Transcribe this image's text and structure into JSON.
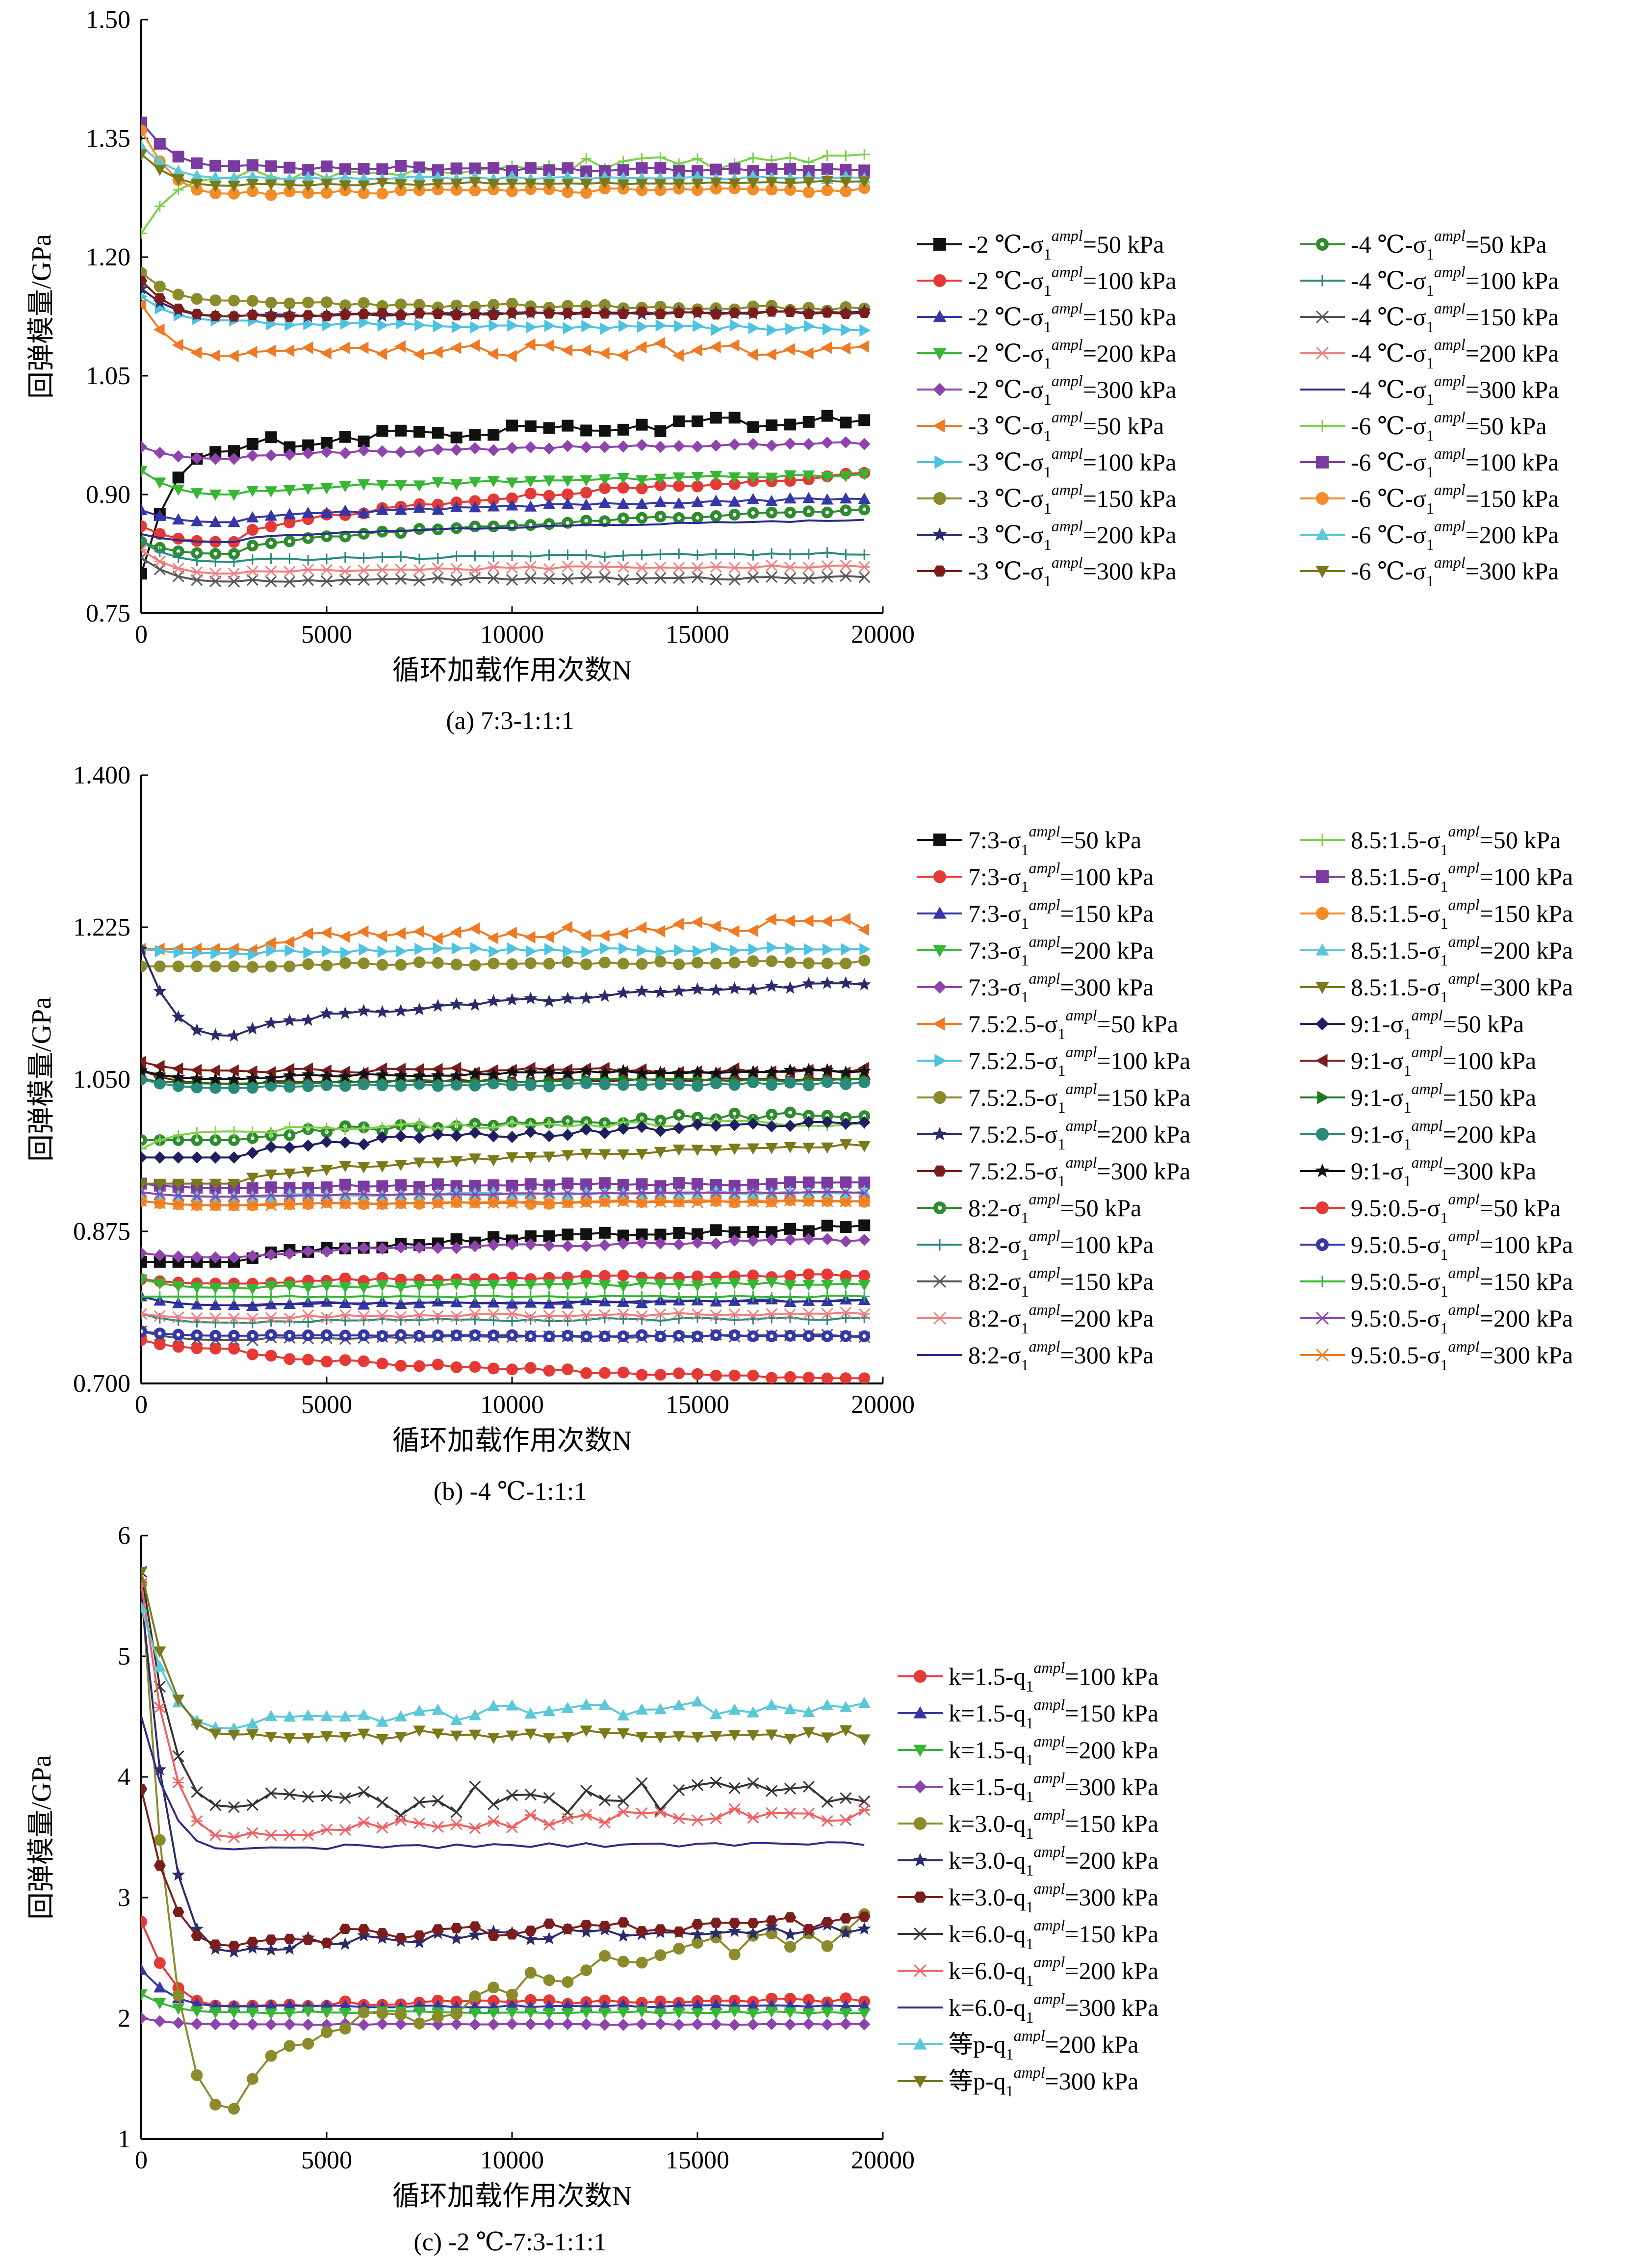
{
  "chart_data": [
    {
      "type": "line",
      "caption": "(a) 7:3-1:1:1",
      "xlabel": "循环加载作用次数N",
      "ylabel": "回弹模量/GPa",
      "xlim": [
        0,
        20000
      ],
      "ylim": [
        0.75,
        1.5
      ],
      "xticks": [
        "0",
        "5000",
        "10000",
        "15000",
        "20000"
      ],
      "yticks": [
        "0.75",
        "0.90",
        "1.05",
        "1.20",
        "1.35",
        "1.50"
      ],
      "legend_placement": "right",
      "series": [
        {
          "name": "-2 ℃-σ1ampl=50 kPa",
          "label_prefix": "-2 ℃-σ",
          "label_suffix": "=50 kPa",
          "color": "#111111",
          "marker": "square",
          "start": 0.8,
          "dip": 0.955,
          "level": 0.995,
          "noise": 0.008
        },
        {
          "name": "-2 ℃-σ1ampl=100 kPa",
          "label_prefix": "-2 ℃-σ",
          "label_suffix": "=100 kPa",
          "color": "#e53935",
          "marker": "circle",
          "start": 0.86,
          "dip": 0.84,
          "level": 0.925,
          "noise": 0.003
        },
        {
          "name": "-2 ℃-σ1ampl=150 kPa",
          "label_prefix": "-2 ℃-σ",
          "label_suffix": "=150 kPa",
          "color": "#3537a8",
          "marker": "triangle",
          "start": 0.88,
          "dip": 0.865,
          "level": 0.895,
          "noise": 0.002
        },
        {
          "name": "-2 ℃-σ1ampl=200 kPa",
          "label_prefix": "-2 ℃-σ",
          "label_suffix": "=200 kPa",
          "color": "#35b735",
          "marker": "triangle-down",
          "start": 0.93,
          "dip": 0.9,
          "level": 0.925,
          "noise": 0.002
        },
        {
          "name": "-2 ℃-σ1ampl=300 kPa",
          "label_prefix": "-2 ℃-σ",
          "label_suffix": "=300 kPa",
          "color": "#8e44ad",
          "marker": "diamond",
          "start": 0.96,
          "dip": 0.945,
          "level": 0.965,
          "noise": 0.002
        },
        {
          "name": "-3 ℃-σ1ampl=50 kPa",
          "label_prefix": "-3 ℃-σ",
          "label_suffix": "=50 kPa",
          "color": "#ee7b24",
          "marker": "tri-left",
          "start": 1.14,
          "dip": 1.075,
          "level": 1.085,
          "noise": 0.008
        },
        {
          "name": "-3 ℃-σ1ampl=100 kPa",
          "label_prefix": "-3 ℃-σ",
          "label_suffix": "=100 kPa",
          "color": "#4dc3e0",
          "marker": "tri-right",
          "start": 1.15,
          "dip": 1.12,
          "level": 1.11,
          "noise": 0.003
        },
        {
          "name": "-3 ℃-σ1ampl=150 kPa",
          "label_prefix": "-3 ℃-σ",
          "label_suffix": "=150 kPa",
          "color": "#8b8b2b",
          "marker": "circle",
          "start": 1.18,
          "dip": 1.145,
          "level": 1.135,
          "noise": 0.003
        },
        {
          "name": "-3 ℃-σ1ampl=200 kPa",
          "label_prefix": "-3 ℃-σ",
          "label_suffix": "=200 kPa",
          "color": "#2b2b6b",
          "marker": "star",
          "start": 1.16,
          "dip": 1.125,
          "level": 1.13,
          "noise": 0.002
        },
        {
          "name": "-3 ℃-σ1ampl=300 kPa",
          "label_prefix": "-3 ℃-σ",
          "label_suffix": "=300 kPa",
          "color": "#7b1d1d",
          "marker": "hexagon",
          "start": 1.17,
          "dip": 1.125,
          "level": 1.13,
          "noise": 0.002
        },
        {
          "name": "-4 ℃-σ1ampl=50 kPa",
          "label_prefix": "-4 ℃-σ",
          "label_suffix": "=50 kPa",
          "color": "#2e8b2e",
          "marker": "circle-dot",
          "start": 0.84,
          "dip": 0.825,
          "level": 0.88,
          "noise": 0.002
        },
        {
          "name": "-4 ℃-σ1ampl=100 kPa",
          "label_prefix": "-4 ℃-σ",
          "label_suffix": "=100 kPa",
          "color": "#2a8a7a",
          "marker": "plus",
          "start": 0.84,
          "dip": 0.815,
          "level": 0.825,
          "noise": 0.002
        },
        {
          "name": "-4 ℃-σ1ampl=150 kPa",
          "label_prefix": "-4 ℃-σ",
          "label_suffix": "=150 kPa",
          "color": "#555555",
          "marker": "x",
          "start": 0.82,
          "dip": 0.79,
          "level": 0.795,
          "noise": 0.002
        },
        {
          "name": "-4 ℃-σ1ampl=200 kPa",
          "label_prefix": "-4 ℃-σ",
          "label_suffix": "=200 kPa",
          "color": "#f08080",
          "marker": "asterisk",
          "start": 0.83,
          "dip": 0.8,
          "level": 0.81,
          "noise": 0.002
        },
        {
          "name": "-4 ℃-σ1ampl=300 kPa",
          "label_prefix": "-4 ℃-σ",
          "label_suffix": "=300 kPa",
          "color": "#2b2b8b",
          "marker": "none",
          "start": 0.85,
          "dip": 0.84,
          "level": 0.868,
          "noise": 0.001
        },
        {
          "name": "-6 ℃-σ1ampl=50 kPa",
          "label_prefix": "-6 ℃-σ",
          "label_suffix": "=50 kPa",
          "color": "#7cd14a",
          "marker": "plus",
          "start": 1.23,
          "dip": 1.3,
          "level": 1.32,
          "noise": 0.01
        },
        {
          "name": "-6 ℃-σ1ampl=100 kPa",
          "label_prefix": "-6 ℃-σ",
          "label_suffix": "=100 kPa",
          "color": "#7a3aa0",
          "marker": "square",
          "start": 1.37,
          "dip": 1.315,
          "level": 1.31,
          "noise": 0.003
        },
        {
          "name": "-6 ℃-σ1ampl=150 kPa",
          "label_prefix": "-6 ℃-σ",
          "label_suffix": "=150 kPa",
          "color": "#f28c28",
          "marker": "circle",
          "start": 1.36,
          "dip": 1.28,
          "level": 1.285,
          "noise": 0.003
        },
        {
          "name": "-6 ℃-σ1ampl=200 kPa",
          "label_prefix": "-6 ℃-σ",
          "label_suffix": "=200 kPa",
          "color": "#5bc8d8",
          "marker": "triangle",
          "start": 1.34,
          "dip": 1.3,
          "level": 1.3,
          "noise": 0.002
        },
        {
          "name": "-6 ℃-σ1ampl=300 kPa",
          "label_prefix": "-6 ℃-σ",
          "label_suffix": "=300 kPa",
          "color": "#7a7a1a",
          "marker": "triangle-down",
          "start": 1.33,
          "dip": 1.29,
          "level": 1.295,
          "noise": 0.002
        }
      ]
    },
    {
      "type": "line",
      "caption": "(b) -4 ℃-1:1:1",
      "xlabel": "循环加载作用次数N",
      "ylabel": "回弹模量/GPa",
      "xlim": [
        0,
        20000
      ],
      "ylim": [
        0.7,
        1.4
      ],
      "xticks": [
        "0",
        "5000",
        "10000",
        "15000",
        "20000"
      ],
      "yticks": [
        "0.700",
        "0.875",
        "1.050",
        "1.225",
        "1.400"
      ],
      "legend_placement": "right",
      "series": [
        {
          "name": "7:3-σ1ampl=50 kPa",
          "label_prefix": "7:3-σ",
          "label_suffix": "=50 kPa",
          "color": "#111111",
          "marker": "square",
          "start": 0.84,
          "dip": 0.84,
          "level": 0.88,
          "noise": 0.003
        },
        {
          "name": "7:3-σ1ampl=100 kPa",
          "label_prefix": "7:3-σ",
          "label_suffix": "=100 kPa",
          "color": "#e53935",
          "marker": "circle",
          "start": 0.82,
          "dip": 0.815,
          "level": 0.825,
          "noise": 0.002
        },
        {
          "name": "7:3-σ1ampl=150 kPa",
          "label_prefix": "7:3-σ",
          "label_suffix": "=150 kPa",
          "color": "#3537a8",
          "marker": "triangle",
          "start": 0.8,
          "dip": 0.79,
          "level": 0.795,
          "noise": 0.002
        },
        {
          "name": "7:3-σ1ampl=200 kPa",
          "label_prefix": "7:3-σ",
          "label_suffix": "=200 kPa",
          "color": "#35b735",
          "marker": "triangle-down",
          "start": 0.82,
          "dip": 0.81,
          "level": 0.815,
          "noise": 0.002
        },
        {
          "name": "7:3-σ1ampl=300 kPa",
          "label_prefix": "7:3-σ",
          "label_suffix": "=300 kPa",
          "color": "#8e44ad",
          "marker": "diamond",
          "start": 0.85,
          "dip": 0.845,
          "level": 0.865,
          "noise": 0.002
        },
        {
          "name": "7.5:2.5-σ1ampl=50 kPa",
          "label_prefix": "7.5:2.5-σ",
          "label_suffix": "=50 kPa",
          "color": "#ee7b24",
          "marker": "tri-left",
          "start": 1.2,
          "dip": 1.2,
          "level": 1.23,
          "noise": 0.008
        },
        {
          "name": "7.5:2.5-σ1ampl=100 kPa",
          "label_prefix": "7.5:2.5-σ",
          "label_suffix": "=100 kPa",
          "color": "#4dc3e0",
          "marker": "tri-right",
          "start": 1.2,
          "dip": 1.195,
          "level": 1.2,
          "noise": 0.003
        },
        {
          "name": "7.5:2.5-σ1ampl=150 kPa",
          "label_prefix": "7.5:2.5-σ",
          "label_suffix": "=150 kPa",
          "color": "#8b8b2b",
          "marker": "circle",
          "start": 1.18,
          "dip": 1.18,
          "level": 1.185,
          "noise": 0.002
        },
        {
          "name": "7.5:2.5-σ1ampl=200 kPa",
          "label_prefix": "7.5:2.5-σ",
          "label_suffix": "=200 kPa",
          "color": "#2b2b6b",
          "marker": "star",
          "start": 1.2,
          "dip": 1.1,
          "level": 1.16,
          "noise": 0.003
        },
        {
          "name": "7.5:2.5-σ1ampl=300 kPa",
          "label_prefix": "7.5:2.5-σ",
          "label_suffix": "=300 kPa",
          "color": "#7b1d1d",
          "marker": "hexagon",
          "start": 1.06,
          "dip": 1.045,
          "level": 1.05,
          "noise": 0.002
        },
        {
          "name": "8:2-σ1ampl=50 kPa",
          "label_prefix": "8:2-σ",
          "label_suffix": "=50 kPa",
          "color": "#2e8b2e",
          "marker": "circle-dot",
          "start": 0.98,
          "dip": 0.98,
          "level": 1.01,
          "noise": 0.004
        },
        {
          "name": "8:2-σ1ampl=100 kPa",
          "label_prefix": "8:2-σ",
          "label_suffix": "=100 kPa",
          "color": "#2a8a7a",
          "marker": "plus",
          "start": 0.78,
          "dip": 0.77,
          "level": 0.775,
          "noise": 0.002
        },
        {
          "name": "8:2-σ1ampl=150 kPa",
          "label_prefix": "8:2-σ",
          "label_suffix": "=150 kPa",
          "color": "#555555",
          "marker": "x",
          "start": 0.76,
          "dip": 0.75,
          "level": 0.755,
          "noise": 0.002
        },
        {
          "name": "8:2-σ1ampl=200 kPa",
          "label_prefix": "8:2-σ",
          "label_suffix": "=200 kPa",
          "color": "#f08080",
          "marker": "asterisk",
          "start": 0.78,
          "dip": 0.775,
          "level": 0.78,
          "noise": 0.002
        },
        {
          "name": "8:2-σ1ampl=300 kPa",
          "label_prefix": "8:2-σ",
          "label_suffix": "=300 kPa",
          "color": "#2b2b8b",
          "marker": "none",
          "start": 0.8,
          "dip": 0.79,
          "level": 0.795,
          "noise": 0.001
        },
        {
          "name": "8.5:1.5-σ1ampl=50 kPa",
          "label_prefix": "8.5:1.5-σ",
          "label_suffix": "=50 kPa",
          "color": "#7cd14a",
          "marker": "plus",
          "start": 0.97,
          "dip": 0.99,
          "level": 1.0,
          "noise": 0.004
        },
        {
          "name": "8.5:1.5-σ1ampl=100 kPa",
          "label_prefix": "8.5:1.5-σ",
          "label_suffix": "=100 kPa",
          "color": "#7a3aa0",
          "marker": "square",
          "start": 0.93,
          "dip": 0.925,
          "level": 0.93,
          "noise": 0.002
        },
        {
          "name": "8.5:1.5-σ1ampl=150 kPa",
          "label_prefix": "8.5:1.5-σ",
          "label_suffix": "=150 kPa",
          "color": "#f28c28",
          "marker": "circle",
          "start": 0.91,
          "dip": 0.905,
          "level": 0.91,
          "noise": 0.002
        },
        {
          "name": "8.5:1.5-σ1ampl=200 kPa",
          "label_prefix": "8.5:1.5-σ",
          "label_suffix": "=200 kPa",
          "color": "#5bc8d8",
          "marker": "triangle",
          "start": 0.92,
          "dip": 0.915,
          "level": 0.92,
          "noise": 0.002
        },
        {
          "name": "8.5:1.5-σ1ampl=300 kPa",
          "label_prefix": "8.5:1.5-σ",
          "label_suffix": "=300 kPa",
          "color": "#7a7a1a",
          "marker": "triangle-down",
          "start": 0.93,
          "dip": 0.93,
          "level": 0.975,
          "noise": 0.002
        },
        {
          "name": "9:1-σ1ampl=50 kPa",
          "label_prefix": "9:1-σ",
          "label_suffix": "=50 kPa",
          "color": "#1f1f5f",
          "marker": "diamond",
          "start": 0.96,
          "dip": 0.96,
          "level": 1.0,
          "noise": 0.004
        },
        {
          "name": "9:1-σ1ampl=100 kPa",
          "label_prefix": "9:1-σ",
          "label_suffix": "=100 kPa",
          "color": "#7b1d1d",
          "marker": "tri-left",
          "start": 1.07,
          "dip": 1.06,
          "level": 1.06,
          "noise": 0.003
        },
        {
          "name": "9:1-σ1ampl=150 kPa",
          "label_prefix": "9:1-σ",
          "label_suffix": "=150 kPa",
          "color": "#1f7a1f",
          "marker": "tri-right",
          "start": 1.05,
          "dip": 1.045,
          "level": 1.05,
          "noise": 0.002
        },
        {
          "name": "9:1-σ1ampl=200 kPa",
          "label_prefix": "9:1-σ",
          "label_suffix": "=200 kPa",
          "color": "#2a8a7a",
          "marker": "circle",
          "start": 1.05,
          "dip": 1.04,
          "level": 1.045,
          "noise": 0.002
        },
        {
          "name": "9:1-σ1ampl=300 kPa",
          "label_prefix": "9:1-σ",
          "label_suffix": "=300 kPa",
          "color": "#111111",
          "marker": "star",
          "start": 1.06,
          "dip": 1.05,
          "level": 1.06,
          "noise": 0.002
        },
        {
          "name": "9.5:0.5-σ1ampl=50 kPa",
          "label_prefix": "9.5:0.5-σ",
          "label_suffix": "=50 kPa",
          "color": "#e53935",
          "marker": "circle",
          "start": 0.75,
          "dip": 0.74,
          "level": 0.705,
          "noise": 0.002
        },
        {
          "name": "9.5:0.5-σ1ampl=100 kPa",
          "label_prefix": "9.5:0.5-σ",
          "label_suffix": "=100 kPa",
          "color": "#3537a8",
          "marker": "circle-dot",
          "start": 0.76,
          "dip": 0.755,
          "level": 0.755,
          "noise": 0.001
        },
        {
          "name": "9.5:0.5-σ1ampl=150 kPa",
          "label_prefix": "9.5:0.5-σ",
          "label_suffix": "=150 kPa",
          "color": "#35b735",
          "marker": "plus",
          "start": 0.8,
          "dip": 0.8,
          "level": 0.8,
          "noise": 0.001
        },
        {
          "name": "9.5:0.5-σ1ampl=200 kPa",
          "label_prefix": "9.5:0.5-σ",
          "label_suffix": "=200 kPa",
          "color": "#8e44ad",
          "marker": "x",
          "start": 0.92,
          "dip": 0.915,
          "level": 0.92,
          "noise": 0.001
        },
        {
          "name": "9.5:0.5-σ1ampl=300 kPa",
          "label_prefix": "9.5:0.5-σ",
          "label_suffix": "=300 kPa",
          "color": "#ee7b24",
          "marker": "asterisk",
          "start": 0.91,
          "dip": 0.905,
          "level": 0.91,
          "noise": 0.001
        }
      ]
    },
    {
      "type": "line",
      "caption": "(c) -2 ℃-7:3-1:1:1",
      "xlabel": "循环加载作用次数N",
      "ylabel": "回弹模量/GPa",
      "xlim": [
        0,
        20000
      ],
      "ylim": [
        1,
        6
      ],
      "xticks": [
        "0",
        "5000",
        "10000",
        "15000",
        "20000"
      ],
      "yticks": [
        "1",
        "2",
        "3",
        "4",
        "5",
        "6"
      ],
      "legend_placement": "right",
      "series": [
        {
          "name": "k=1.5-qampl=100 kPa",
          "label_prefix": "k=1.5-q",
          "label_suffix": "=100 kPa",
          "color": "#e53935",
          "marker": "circle",
          "start": 2.8,
          "dip": 2.1,
          "level": 2.15,
          "noise": 0.02
        },
        {
          "name": "k=1.5-qampl=150 kPa",
          "label_prefix": "k=1.5-q",
          "label_suffix": "=150 kPa",
          "color": "#3537a8",
          "marker": "triangle",
          "start": 2.4,
          "dip": 2.1,
          "level": 2.1,
          "noise": 0.01
        },
        {
          "name": "k=1.5-qampl=200 kPa",
          "label_prefix": "k=1.5-q",
          "label_suffix": "=200 kPa",
          "color": "#35b735",
          "marker": "triangle-down",
          "start": 2.2,
          "dip": 2.05,
          "level": 2.05,
          "noise": 0.01
        },
        {
          "name": "k=1.5-qampl=300 kPa",
          "label_prefix": "k=1.5-q",
          "label_suffix": "=300 kPa",
          "color": "#8e44ad",
          "marker": "diamond",
          "start": 2.0,
          "dip": 1.95,
          "level": 1.95,
          "noise": 0.005
        },
        {
          "name": "k=3.0-qampl=150 kPa",
          "label_prefix": "k=3.0-q",
          "label_suffix": "=150 kPa",
          "color": "#8b8b2b",
          "marker": "circle",
          "start": 5.6,
          "dip": 1.25,
          "level": 2.75,
          "noise": 0.12
        },
        {
          "name": "k=3.0-qampl=200 kPa",
          "label_prefix": "k=3.0-q",
          "label_suffix": "=200 kPa",
          "color": "#2b2b6b",
          "marker": "star",
          "start": 5.5,
          "dip": 2.55,
          "level": 2.75,
          "noise": 0.05
        },
        {
          "name": "k=3.0-qampl=300 kPa",
          "label_prefix": "k=3.0-q",
          "label_suffix": "=300 kPa",
          "color": "#7b1d1d",
          "marker": "hexagon",
          "start": 3.9,
          "dip": 2.6,
          "level": 2.8,
          "noise": 0.06
        },
        {
          "name": "k=6.0-qampl=150 kPa",
          "label_prefix": "k=6.0-q",
          "label_suffix": "=150 kPa",
          "color": "#333333",
          "marker": "x",
          "start": 5.7,
          "dip": 3.75,
          "level": 3.85,
          "noise": 0.12
        },
        {
          "name": "k=6.0-qampl=200 kPa",
          "label_prefix": "k=6.0-q",
          "label_suffix": "=200 kPa",
          "color": "#f06060",
          "marker": "asterisk",
          "start": 5.6,
          "dip": 3.5,
          "level": 3.7,
          "noise": 0.06
        },
        {
          "name": "k=6.0-qampl=300 kPa",
          "label_prefix": "k=6.0-q",
          "label_suffix": "=300 kPa",
          "color": "#2b2b8b",
          "marker": "none",
          "start": 4.5,
          "dip": 3.4,
          "level": 3.45,
          "noise": 0.02
        },
        {
          "name": "等p-qampl=200 kPa",
          "label_prefix": "等p-q",
          "label_suffix": "=200 kPa",
          "color": "#5bc8d8",
          "marker": "triangle",
          "start": 5.4,
          "dip": 4.4,
          "level": 4.6,
          "noise": 0.06
        },
        {
          "name": "等p-qampl=300 kPa",
          "label_prefix": "等p-q",
          "label_suffix": "=300 kPa",
          "color": "#7a7a1a",
          "marker": "triangle-down",
          "start": 5.7,
          "dip": 4.35,
          "level": 4.35,
          "noise": 0.04
        }
      ]
    }
  ]
}
